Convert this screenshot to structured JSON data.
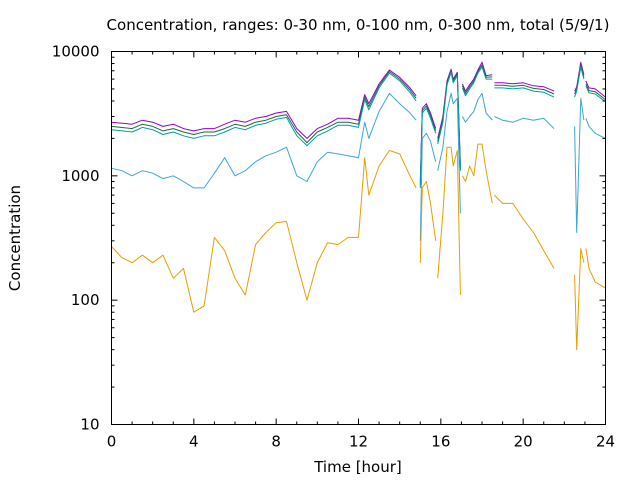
{
  "chart_data": {
    "type": "line",
    "title": "Concentration, ranges: 0-30 nm, 0-100 nm, 0-300 nm, total (5/9/1)",
    "xlabel": "Time [hour]",
    "ylabel": "Concentration",
    "xlim": [
      0,
      24
    ],
    "ylim": [
      10,
      10000
    ],
    "yscale": "log",
    "xticks": [
      0,
      4,
      8,
      12,
      16,
      20,
      24
    ],
    "yticks": [
      10,
      100,
      1000,
      10000
    ],
    "grid": false,
    "legend": "none",
    "gaps": [
      [
        14.8,
        15.0
      ],
      [
        15.75,
        15.85
      ],
      [
        16.95,
        17.05
      ],
      [
        18.5,
        18.6
      ],
      [
        21.5,
        22.5
      ],
      [
        22.95,
        23.05
      ]
    ],
    "series": [
      {
        "color": "#9400d3",
        "x": [
          0,
          1,
          1.5,
          2,
          2.5,
          3,
          3.5,
          4,
          4.5,
          5,
          5.5,
          6,
          6.5,
          7,
          7.5,
          8,
          8.5,
          9,
          9.5,
          10,
          10.5,
          11,
          11.5,
          12,
          12.3,
          12.5,
          13,
          13.5,
          14,
          14.5,
          14.8,
          15,
          15.1,
          15.3,
          15.5,
          15.75,
          15.85,
          16.1,
          16.3,
          16.5,
          16.6,
          16.8,
          16.95,
          17.05,
          17.2,
          17.4,
          17.6,
          17.8,
          18,
          18.2,
          18.5,
          18.6,
          19,
          19.5,
          20,
          20.5,
          21,
          21.5,
          22.5,
          22.6,
          22.8,
          22.95,
          23.05,
          23.2,
          23.5,
          24
        ],
        "values": [
          2700,
          2600,
          2800,
          2700,
          2500,
          2600,
          2400,
          2300,
          2400,
          2400,
          2600,
          2800,
          2700,
          2900,
          3000,
          3200,
          3300,
          2400,
          2000,
          2400,
          2600,
          2900,
          2900,
          2800,
          4500,
          3800,
          5500,
          7100,
          6200,
          5100,
          4400,
          900,
          3500,
          3800,
          3200,
          2400,
          2000,
          3000,
          5800,
          7200,
          6000,
          6800,
          1200,
          5500,
          4800,
          5400,
          6000,
          7100,
          8200,
          6400,
          6500,
          5600,
          5600,
          5500,
          5600,
          5300,
          5200,
          4800,
          4800,
          5200,
          8200,
          6500,
          5800,
          5100,
          5000,
          4300
        ]
      },
      {
        "color": "#1a6b3f",
        "x": [
          0,
          1,
          1.5,
          2,
          2.5,
          3,
          3.5,
          4,
          4.5,
          5,
          5.5,
          6,
          6.5,
          7,
          7.5,
          8,
          8.5,
          9,
          9.5,
          10,
          10.5,
          11,
          11.5,
          12,
          12.3,
          12.5,
          13,
          13.5,
          14,
          14.5,
          14.8,
          15,
          15.1,
          15.3,
          15.5,
          15.75,
          15.85,
          16.1,
          16.3,
          16.5,
          16.6,
          16.8,
          16.95,
          17.05,
          17.2,
          17.4,
          17.6,
          17.8,
          18,
          18.2,
          18.5,
          18.6,
          19,
          19.5,
          20,
          20.5,
          21,
          21.5,
          22.5,
          22.6,
          22.8,
          22.95,
          23.05,
          23.2,
          23.5,
          24
        ],
        "values": [
          2500,
          2400,
          2600,
          2500,
          2300,
          2400,
          2250,
          2150,
          2250,
          2250,
          2400,
          2600,
          2500,
          2700,
          2800,
          3000,
          3100,
          2250,
          1850,
          2250,
          2450,
          2700,
          2700,
          2600,
          4300,
          3600,
          5300,
          6900,
          6000,
          4900,
          4200,
          850,
          3350,
          3650,
          3050,
          2300,
          1900,
          2850,
          5600,
          7000,
          5800,
          6600,
          1150,
          5300,
          4600,
          5200,
          5800,
          6900,
          7800,
          6200,
          6250,
          5350,
          5350,
          5250,
          5350,
          5050,
          4950,
          4550,
          4550,
          5000,
          7800,
          6200,
          5500,
          4850,
          4750,
          4100
        ]
      },
      {
        "color": "#009e9e",
        "x": [
          0,
          1,
          1.5,
          2,
          2.5,
          3,
          3.5,
          4,
          4.5,
          5,
          5.5,
          6,
          6.5,
          7,
          7.5,
          8,
          8.5,
          9,
          9.5,
          10,
          10.5,
          11,
          11.5,
          12,
          12.3,
          12.5,
          13,
          13.5,
          14,
          14.5,
          14.8,
          15,
          15.1,
          15.3,
          15.5,
          15.75,
          15.85,
          16.1,
          16.3,
          16.5,
          16.6,
          16.8,
          16.95,
          17.05,
          17.2,
          17.4,
          17.6,
          17.8,
          18,
          18.2,
          18.5,
          18.6,
          19,
          19.5,
          20,
          20.5,
          21,
          21.5,
          22.5,
          22.6,
          22.8,
          22.95,
          23.05,
          23.2,
          23.5,
          24
        ],
        "values": [
          2350,
          2250,
          2450,
          2350,
          2150,
          2250,
          2100,
          2000,
          2100,
          2100,
          2250,
          2450,
          2350,
          2550,
          2650,
          2850,
          2950,
          2100,
          1750,
          2100,
          2300,
          2550,
          2550,
          2450,
          4100,
          3400,
          5100,
          6700,
          5800,
          4700,
          4000,
          800,
          3200,
          3500,
          2900,
          2200,
          1800,
          2700,
          5400,
          6800,
          5600,
          6400,
          1100,
          5100,
          4400,
          5000,
          5600,
          6700,
          7500,
          6000,
          6000,
          5100,
          5100,
          5000,
          5100,
          4800,
          4700,
          4300,
          4300,
          4800,
          7500,
          6000,
          5300,
          4650,
          4550,
          3950
        ]
      },
      {
        "color": "#3ba6d6",
        "x": [
          0,
          0.5,
          1,
          1.5,
          2,
          2.5,
          3,
          3.5,
          4,
          4.5,
          5,
          5.5,
          6,
          6.5,
          7,
          7.5,
          8,
          8.5,
          9,
          9.5,
          10,
          10.5,
          11,
          11.5,
          12,
          12.3,
          12.5,
          13,
          13.5,
          14,
          14.5,
          14.8,
          15,
          15.1,
          15.3,
          15.5,
          15.75,
          15.85,
          16.1,
          16.3,
          16.5,
          16.6,
          16.8,
          16.95,
          17.05,
          17.2,
          17.4,
          17.6,
          17.8,
          18,
          18.2,
          18.5,
          18.6,
          19,
          19.5,
          20,
          20.5,
          21,
          21.5,
          22.5,
          22.6,
          22.8,
          22.95,
          23.05,
          23.2,
          23.5,
          24
        ],
        "values": [
          1150,
          1100,
          1000,
          1100,
          1050,
          950,
          1000,
          900,
          800,
          800,
          1050,
          1400,
          1000,
          1100,
          1300,
          1450,
          1550,
          1700,
          1000,
          900,
          1300,
          1550,
          1500,
          1450,
          1400,
          2700,
          2000,
          3300,
          4600,
          3800,
          3200,
          2800,
          300,
          2000,
          2200,
          1900,
          1300,
          1100,
          1700,
          3300,
          4600,
          3800,
          4200,
          500,
          3000,
          2700,
          3000,
          3300,
          4100,
          4600,
          3200,
          2800,
          3000,
          2800,
          2700,
          2900,
          2800,
          2900,
          2400,
          2500,
          350,
          4200,
          2800,
          2900,
          2500,
          2200,
          2000
        ]
      },
      {
        "color": "#e69f00",
        "x": [
          0,
          0.5,
          1,
          1.5,
          2,
          2.5,
          3,
          3.5,
          4,
          4.5,
          5,
          5.5,
          6,
          6.5,
          7,
          7.5,
          8,
          8.5,
          9,
          9.5,
          10,
          10.5,
          11,
          11.5,
          12,
          12.3,
          12.5,
          13,
          13.5,
          14,
          14.5,
          14.8,
          15,
          15.1,
          15.3,
          15.5,
          15.75,
          15.85,
          16.1,
          16.3,
          16.5,
          16.6,
          16.8,
          16.95,
          17.05,
          17.2,
          17.4,
          17.6,
          17.8,
          18,
          18.2,
          18.5,
          18.6,
          19,
          19.5,
          20,
          20.5,
          21,
          21.5,
          22.5,
          22.6,
          22.8,
          22.95,
          23.05,
          23.2,
          23.5,
          24
        ],
        "values": [
          270,
          220,
          200,
          230,
          200,
          230,
          150,
          180,
          80,
          90,
          320,
          250,
          150,
          110,
          280,
          350,
          420,
          430,
          200,
          100,
          200,
          290,
          280,
          320,
          320,
          1400,
          700,
          1200,
          1600,
          1500,
          1000,
          800,
          200,
          800,
          900,
          600,
          300,
          150,
          500,
          1700,
          1700,
          1200,
          1600,
          110,
          1000,
          900,
          1200,
          1000,
          1800,
          1800,
          1100,
          600,
          700,
          600,
          600,
          450,
          350,
          250,
          180,
          160,
          40,
          260,
          200,
          260,
          180,
          140,
          125
        ]
      }
    ]
  }
}
